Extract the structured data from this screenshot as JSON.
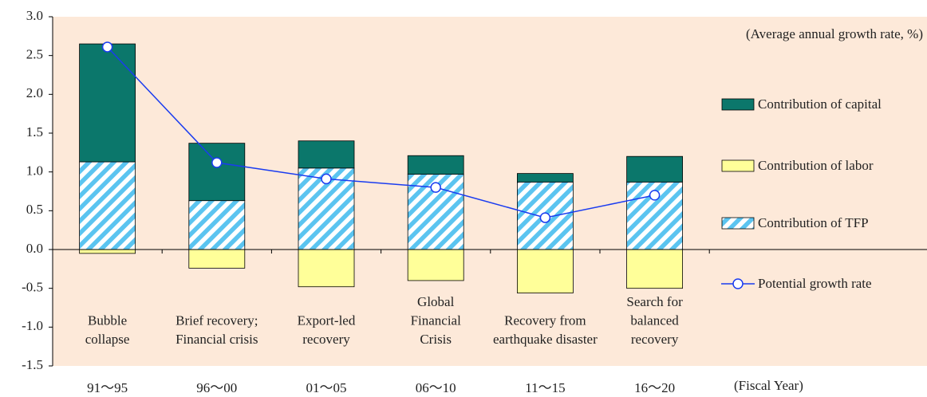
{
  "chart_data": {
    "type": "bar",
    "stacked": true,
    "note": "(Average annual growth rate, %)",
    "x_unit": "(Fiscal Year)",
    "categories": [
      "91〜95",
      "96〜00",
      "01〜05",
      "06〜10",
      "11〜15",
      "16〜20"
    ],
    "annotations": [
      [
        "Bubble",
        "collapse"
      ],
      [
        "Brief recovery;",
        "Financial crisis"
      ],
      [
        "Export-led",
        "recovery"
      ],
      [
        "Global",
        "Financial",
        "Crisis"
      ],
      [
        "Recovery from",
        "earthquake disaster"
      ],
      [
        "Search for",
        "balanced",
        "recovery"
      ]
    ],
    "series": [
      {
        "name": "Contribution of TFP",
        "color": "#5bc4f0",
        "hatch": true,
        "values": [
          1.13,
          0.63,
          1.05,
          0.97,
          0.87,
          0.87
        ]
      },
      {
        "name": "Contribution of labor",
        "color": "#ffff99",
        "values": [
          -0.05,
          -0.24,
          -0.48,
          -0.4,
          -0.56,
          -0.5
        ]
      },
      {
        "name": "Contribution of capital",
        "color": "#0b776b",
        "values": [
          1.52,
          0.74,
          0.35,
          0.24,
          0.11,
          0.33
        ]
      },
      {
        "name": "Potential growth rate",
        "type": "line",
        "color": "#1a3cf0",
        "values": [
          2.61,
          1.12,
          0.91,
          0.8,
          0.41,
          0.7
        ]
      }
    ],
    "legend_order": [
      2,
      1,
      0,
      3
    ],
    "ylim": [
      -1.5,
      3.0
    ],
    "yticks": [
      {
        "value": 3.0,
        "label": "3.0"
      },
      2.5,
      {
        "value": 2.0,
        "label": "2.0"
      },
      1.5,
      {
        "value": 1.0,
        "label": "1.0"
      },
      0.5,
      {
        "value": 0.0,
        "label": "0.0"
      },
      -0.5,
      {
        "value": -1.0,
        "label": "-1.0"
      },
      -1.5
    ]
  }
}
